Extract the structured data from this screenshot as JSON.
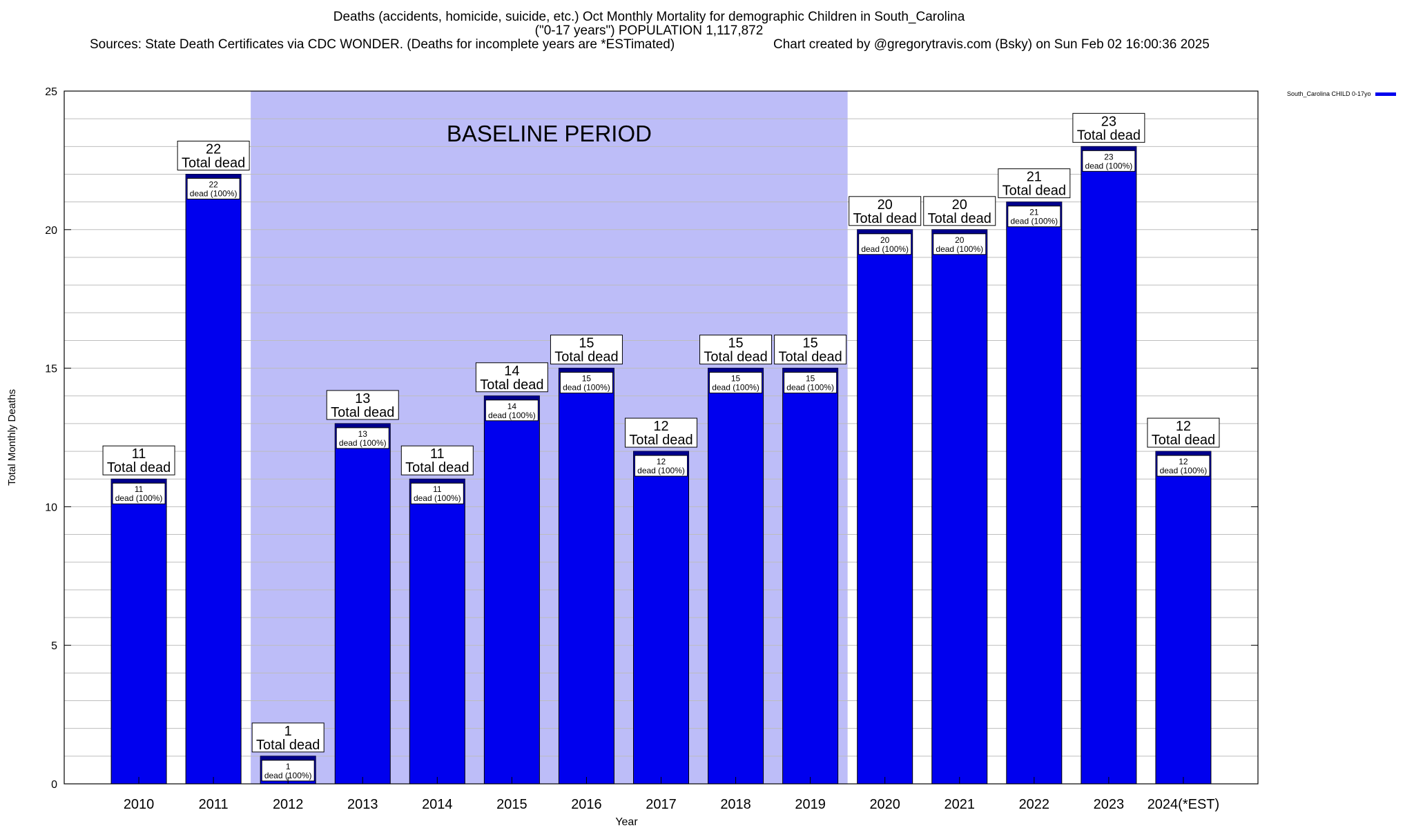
{
  "title": {
    "line1": "Deaths (accidents, homicide, suicide, etc.) Oct Monthly Mortality for demographic Children in South_Carolina",
    "line2": "(\"0-17 years\") POPULATION 1,117,872",
    "sources": "Sources: State Death Certificates via CDC WONDER. (Deaths for incomplete years are *ESTimated)",
    "credit": "Chart created by @gregorytravis.com (Bsky) on Sun Feb 02 16:00:36 2025"
  },
  "legend": {
    "label": "South_Carolina CHILD 0-17yo"
  },
  "chart_data": {
    "type": "bar",
    "xlabel": "Year",
    "ylabel": "Total Monthly Deaths",
    "ylim": [
      0,
      25
    ],
    "yticks": [
      0,
      5,
      10,
      15,
      20,
      25
    ],
    "grid": true,
    "legend_position": "top-right",
    "categories": [
      "2010",
      "2011",
      "2012",
      "2013",
      "2014",
      "2015",
      "2016",
      "2017",
      "2018",
      "2019",
      "2020",
      "2021",
      "2022",
      "2023",
      "2024(*EST)"
    ],
    "series": [
      {
        "name": "South_Carolina CHILD 0-17yo",
        "values": [
          11,
          22,
          1,
          13,
          11,
          14,
          15,
          12,
          15,
          15,
          20,
          20,
          21,
          23,
          12
        ]
      }
    ],
    "total_label": "Total dead",
    "segment_label": "dead (100%)",
    "baseline": {
      "label": "BASELINE PERIOD",
      "from": "2012",
      "to": "2019"
    },
    "colors": {
      "bar": "#0000ee",
      "bar_top": "#00008b",
      "baseline_fill": "#bdbdf8"
    }
  }
}
